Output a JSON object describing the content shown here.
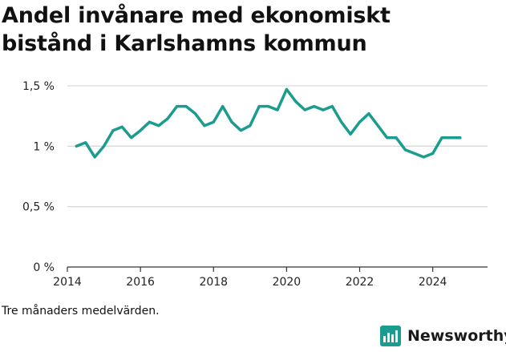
{
  "chart_data": {
    "type": "line",
    "title_lines": [
      "Andel invånare med ekonomiskt",
      "bistånd i Karlshamns kommun"
    ],
    "ylim": [
      0,
      1.5
    ],
    "xlim": [
      2014,
      2025.5
    ],
    "y_ticks": [
      {
        "value": 0,
        "label": "0 %"
      },
      {
        "value": 0.5,
        "label": "0,5 %"
      },
      {
        "value": 1,
        "label": "1 %"
      },
      {
        "value": 1.5,
        "label": "1,5 %"
      }
    ],
    "x_ticks": [
      {
        "value": 2014,
        "label": "2014"
      },
      {
        "value": 2016,
        "label": "2016"
      },
      {
        "value": 2018,
        "label": "2018"
      },
      {
        "value": 2020,
        "label": "2020"
      },
      {
        "value": 2022,
        "label": "2022"
      },
      {
        "value": 2024,
        "label": "2024"
      }
    ],
    "grid": true,
    "line_color": "#1a9c8f",
    "series": [
      {
        "values": [
          [
            2014.25,
            1.0
          ],
          [
            2014.5,
            1.03
          ],
          [
            2014.75,
            0.91
          ],
          [
            2015.0,
            1.0
          ],
          [
            2015.25,
            1.13
          ],
          [
            2015.5,
            1.16
          ],
          [
            2015.75,
            1.07
          ],
          [
            2016.0,
            1.13
          ],
          [
            2016.25,
            1.2
          ],
          [
            2016.5,
            1.17
          ],
          [
            2016.75,
            1.23
          ],
          [
            2017.0,
            1.33
          ],
          [
            2017.25,
            1.33
          ],
          [
            2017.5,
            1.27
          ],
          [
            2017.75,
            1.17
          ],
          [
            2018.0,
            1.2
          ],
          [
            2018.25,
            1.33
          ],
          [
            2018.5,
            1.2
          ],
          [
            2018.75,
            1.13
          ],
          [
            2019.0,
            1.17
          ],
          [
            2019.25,
            1.33
          ],
          [
            2019.5,
            1.33
          ],
          [
            2019.75,
            1.3
          ],
          [
            2020.0,
            1.47
          ],
          [
            2020.25,
            1.37
          ],
          [
            2020.5,
            1.3
          ],
          [
            2020.75,
            1.33
          ],
          [
            2021.0,
            1.3
          ],
          [
            2021.25,
            1.33
          ],
          [
            2021.5,
            1.2
          ],
          [
            2021.75,
            1.1
          ],
          [
            2022.0,
            1.2
          ],
          [
            2022.25,
            1.27
          ],
          [
            2022.5,
            1.17
          ],
          [
            2022.75,
            1.07
          ],
          [
            2023.0,
            1.07
          ],
          [
            2023.25,
            0.97
          ],
          [
            2023.5,
            0.94
          ],
          [
            2023.75,
            0.91
          ],
          [
            2024.0,
            0.94
          ],
          [
            2024.25,
            1.07
          ],
          [
            2024.5,
            1.07
          ],
          [
            2024.75,
            1.07
          ]
        ]
      }
    ]
  },
  "caption": "Tre månaders medelvärden.",
  "brand": {
    "name": "Newsworthy",
    "icon": "bar-chart-icon",
    "color": "#1a9c8f"
  }
}
